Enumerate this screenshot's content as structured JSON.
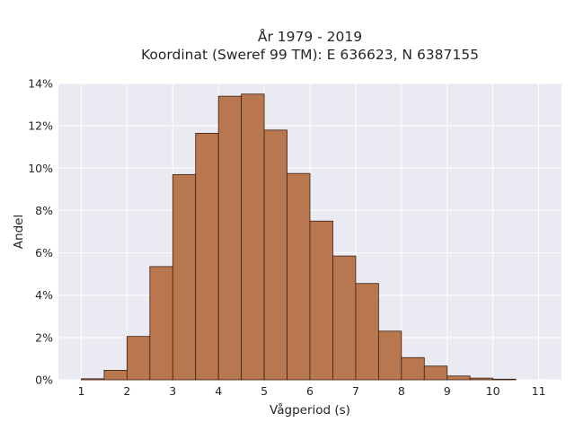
{
  "chart_data": {
    "type": "bar",
    "title_lines": [
      "År 1979 - 2019",
      "Koordinat (Sweref 99 TM): E 636623, N 6387155"
    ],
    "xlabel": "Vågperiod (s)",
    "ylabel": "Andel",
    "x_ticks": [
      "1",
      "2",
      "3",
      "4",
      "5",
      "6",
      "7",
      "8",
      "9",
      "10",
      "11"
    ],
    "y_ticks": [
      "0%",
      "2%",
      "4%",
      "6%",
      "8%",
      "10%",
      "12%",
      "14%"
    ],
    "xlim": [
      0.5,
      11.5
    ],
    "ylim": [
      0,
      14
    ],
    "bin_width": 0.5,
    "bins": [
      {
        "x": 1.0,
        "value": 0.05
      },
      {
        "x": 1.5,
        "value": 0.45
      },
      {
        "x": 2.0,
        "value": 2.05
      },
      {
        "x": 2.5,
        "value": 5.35
      },
      {
        "x": 3.0,
        "value": 9.7
      },
      {
        "x": 3.5,
        "value": 11.65
      },
      {
        "x": 4.0,
        "value": 13.4
      },
      {
        "x": 4.5,
        "value": 13.5
      },
      {
        "x": 5.0,
        "value": 11.8
      },
      {
        "x": 5.5,
        "value": 9.75
      },
      {
        "x": 6.0,
        "value": 7.5
      },
      {
        "x": 6.5,
        "value": 5.85
      },
      {
        "x": 7.0,
        "value": 4.55
      },
      {
        "x": 7.5,
        "value": 2.3
      },
      {
        "x": 8.0,
        "value": 1.05
      },
      {
        "x": 8.5,
        "value": 0.65
      },
      {
        "x": 9.0,
        "value": 0.18
      },
      {
        "x": 9.5,
        "value": 0.08
      },
      {
        "x": 10.0,
        "value": 0.03
      }
    ],
    "bar_color": "#b8774f",
    "edge_color": "#3b2010",
    "background_color": "#eaeaf2",
    "grid": true
  }
}
